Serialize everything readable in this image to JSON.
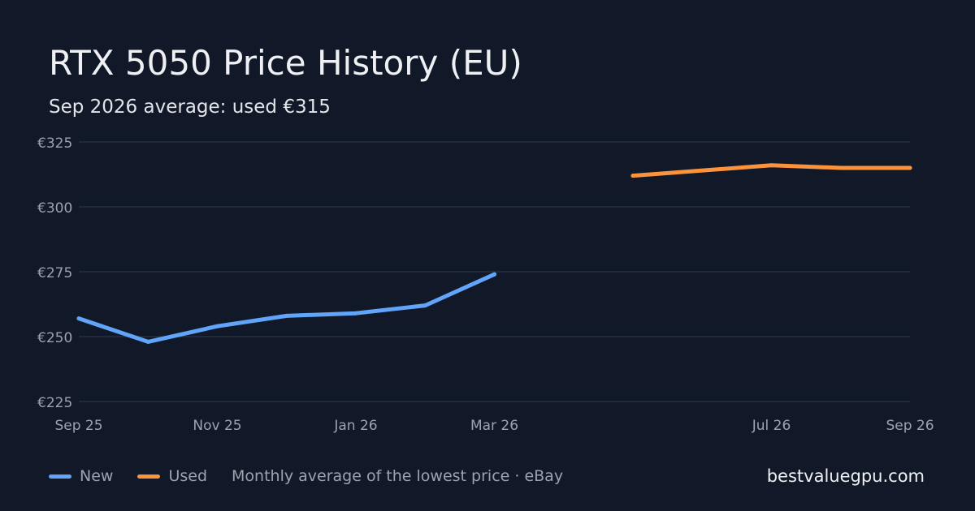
{
  "header": {
    "title": "RTX 5050 Price History (EU)",
    "subtitle": "Sep 2026 average: used €315"
  },
  "footer": {
    "note": "Monthly average of the lowest price · eBay",
    "site": "bestvaluegpu.com"
  },
  "colors": {
    "background": "#111827",
    "grid": "#263041",
    "tick_text": "#9ca3af",
    "new": "#60a5fa",
    "used": "#fb923c"
  },
  "chart_data": {
    "type": "line",
    "x": [
      "Sep 25",
      "Oct 25",
      "Nov 25",
      "Dec 25",
      "Jan 26",
      "Feb 26",
      "Mar 26",
      "Apr 26",
      "May 26",
      "Jul 26",
      "Aug 26",
      "Sep 26"
    ],
    "x_ticks": [
      "Sep 25",
      "Nov 25",
      "Jan 26",
      "Mar 26",
      "Jul 26",
      "Sep 26"
    ],
    "y_ticks": [
      "€225",
      "€250",
      "€275",
      "€300",
      "€325"
    ],
    "ylim": [
      225,
      325
    ],
    "grid": true,
    "legend_position": "bottom-left",
    "series": [
      {
        "name": "New",
        "color": "#60a5fa",
        "points": [
          {
            "x": "Sep 25",
            "y": 257
          },
          {
            "x": "Oct 25",
            "y": 248
          },
          {
            "x": "Nov 25",
            "y": 254
          },
          {
            "x": "Dec 25",
            "y": 258
          },
          {
            "x": "Jan 26",
            "y": 259
          },
          {
            "x": "Feb 26",
            "y": 262
          },
          {
            "x": "Mar 26",
            "y": 274
          }
        ]
      },
      {
        "name": "Used",
        "color": "#fb923c",
        "points": [
          {
            "x": "May 26",
            "y": 312
          },
          {
            "x": "Jul 26",
            "y": 316
          },
          {
            "x": "Aug 26",
            "y": 315
          },
          {
            "x": "Sep 26",
            "y": 315
          }
        ]
      }
    ]
  }
}
